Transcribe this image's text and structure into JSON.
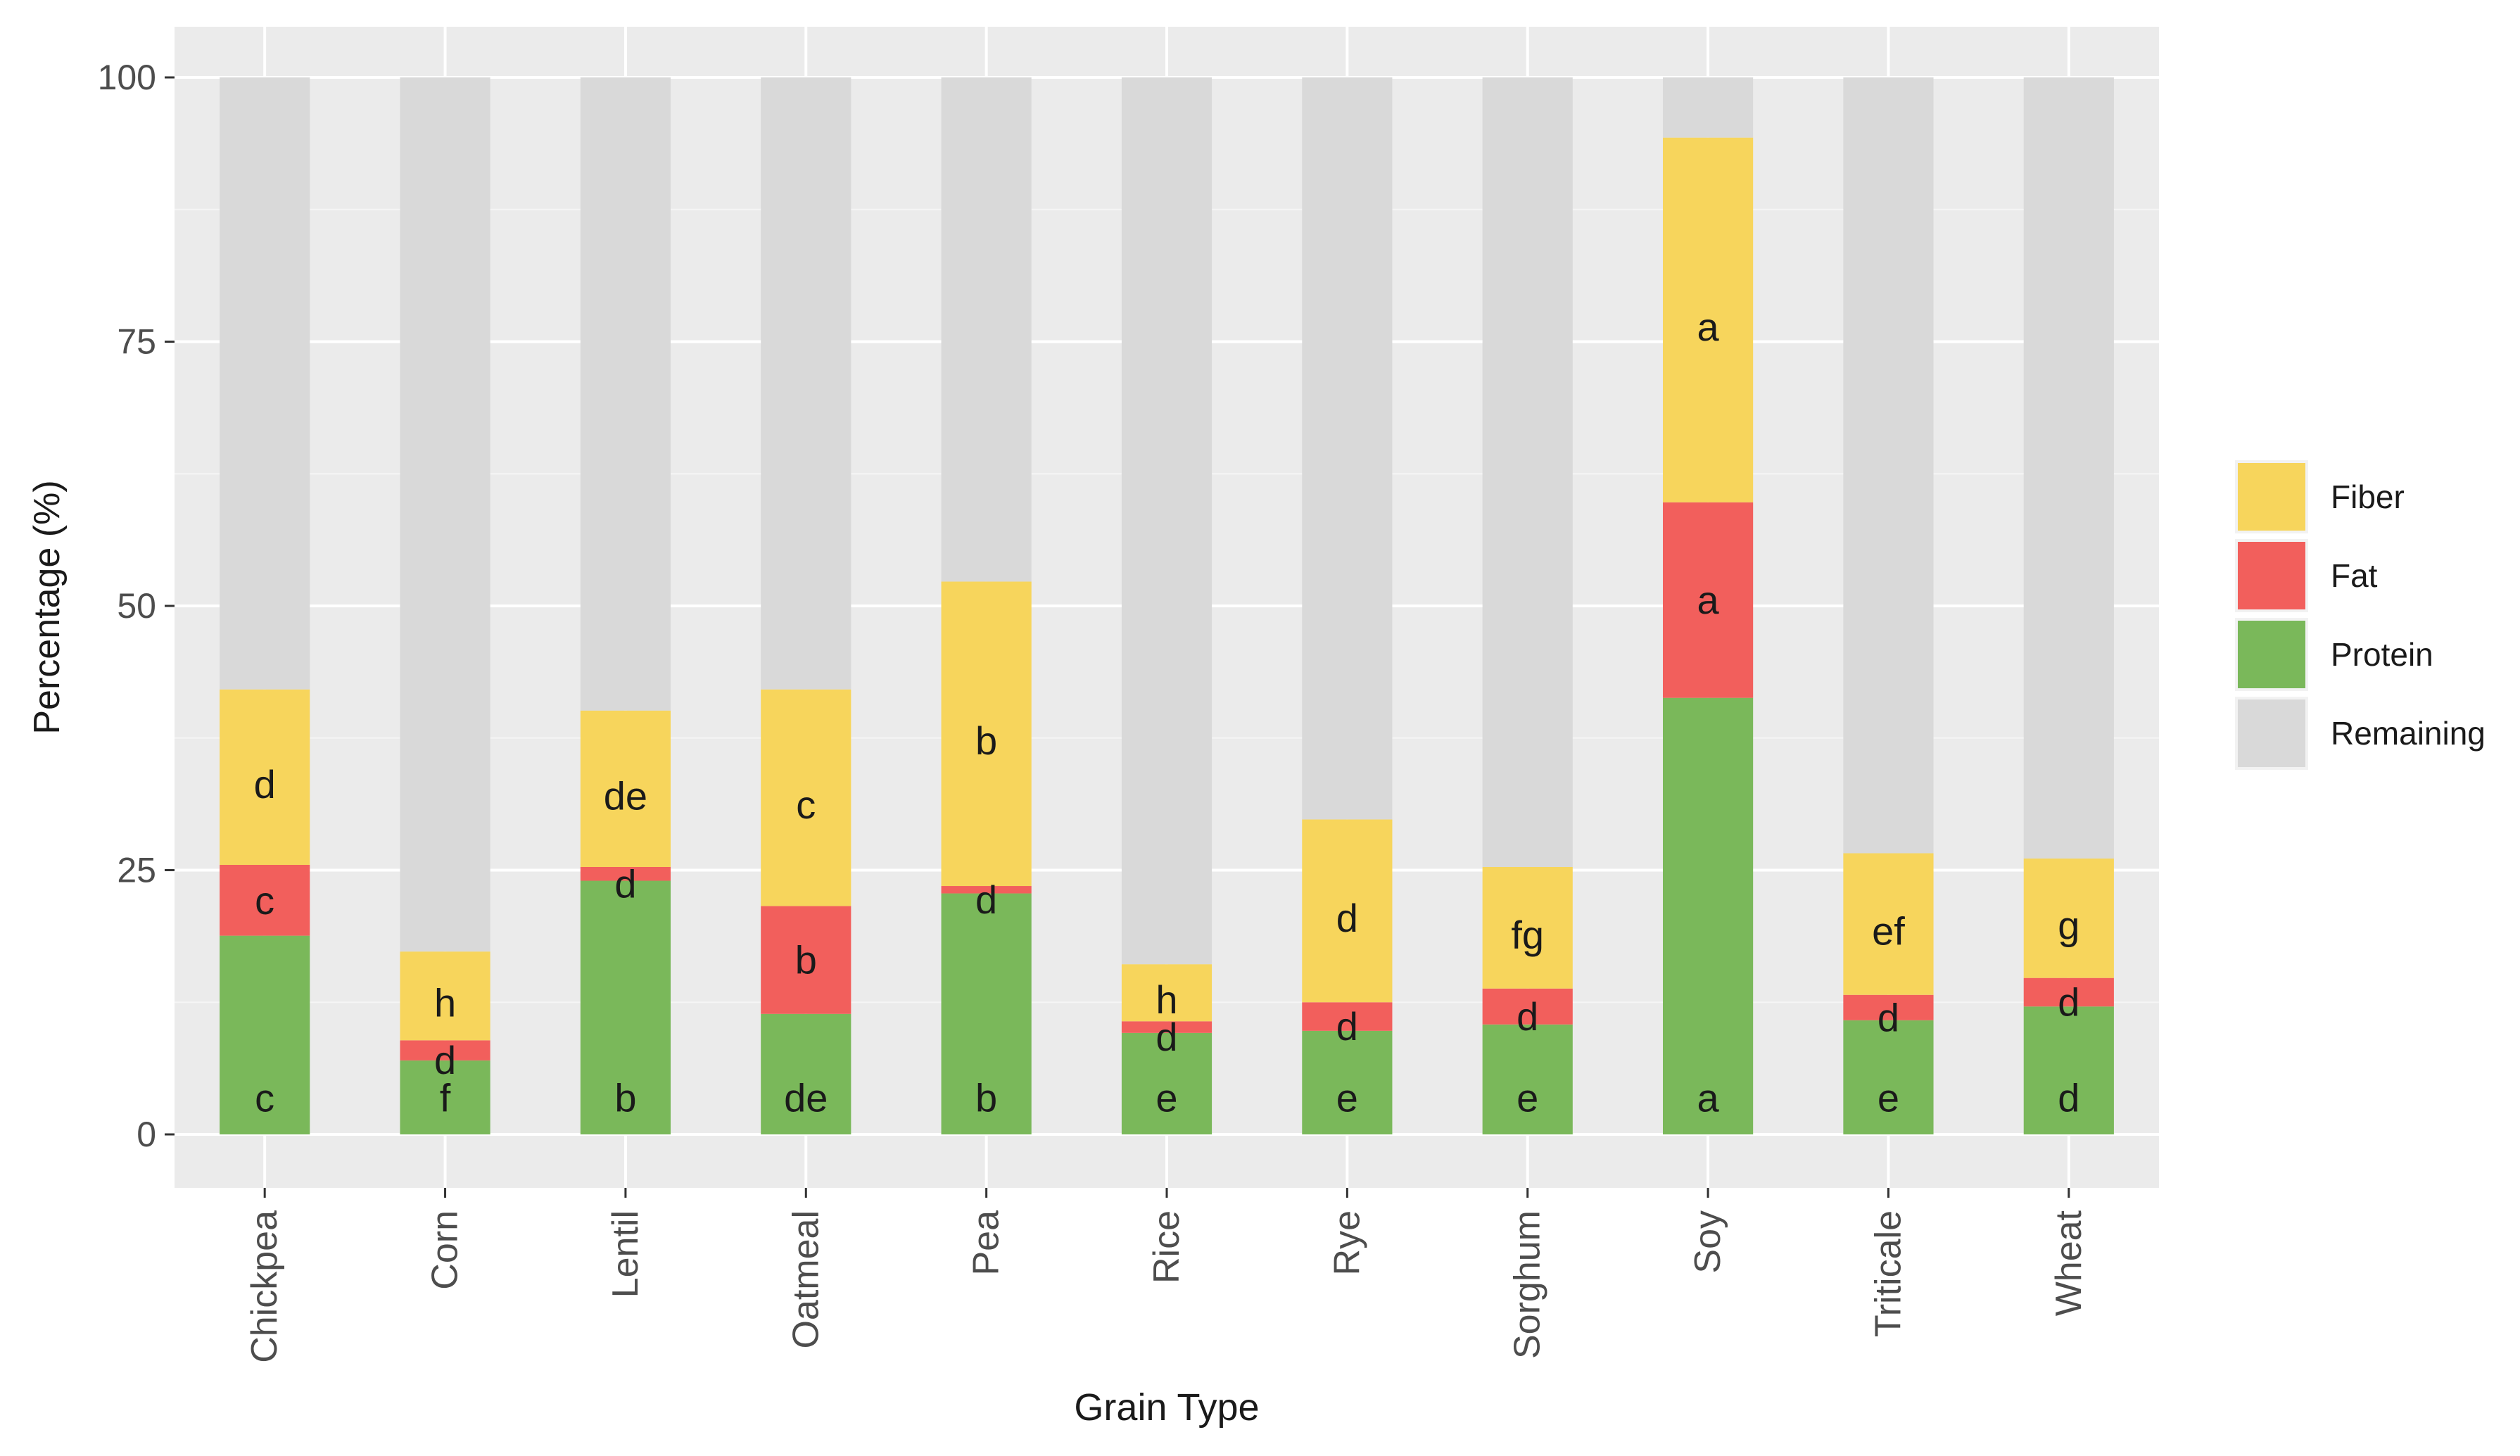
{
  "chart_data": {
    "type": "bar",
    "stacked": true,
    "xlabel": "Grain Type",
    "ylabel": "Percentage (%)",
    "ylim": [
      0,
      100
    ],
    "yticks": [
      "0",
      "25",
      "50",
      "75",
      "100"
    ],
    "categories": [
      "Chickpea",
      "Corn",
      "Lentil",
      "Oatmeal",
      "Pea",
      "Rice",
      "Rye",
      "Sorghum",
      "Soy",
      "Triticale",
      "Wheat"
    ],
    "series": [
      {
        "name": "Protein",
        "color": "#7ab85a",
        "values": [
          18.8,
          7.0,
          24.0,
          11.4,
          22.8,
          9.6,
          9.8,
          10.4,
          41.3,
          10.8,
          12.1
        ],
        "labels": [
          "c",
          "f",
          "b",
          "de",
          "b",
          "e",
          "e",
          "e",
          "a",
          "e",
          "d"
        ]
      },
      {
        "name": "Fat",
        "color": "#f25f5c",
        "values": [
          6.7,
          1.9,
          1.3,
          10.2,
          0.7,
          1.1,
          2.7,
          3.4,
          18.5,
          2.4,
          2.7
        ],
        "labels": [
          "c",
          "d",
          "d",
          "b",
          "d",
          "d",
          "d",
          "d",
          "a",
          "d",
          "d"
        ]
      },
      {
        "name": "Fiber",
        "color": "#f7d55c",
        "values": [
          16.6,
          8.4,
          14.8,
          20.5,
          28.8,
          5.4,
          17.3,
          11.5,
          34.5,
          13.4,
          11.3
        ],
        "labels": [
          "d",
          "h",
          "de",
          "c",
          "b",
          "h",
          "d",
          "fg",
          "a",
          "ef",
          "g"
        ]
      },
      {
        "name": "Remaining",
        "color": "#d9d9d9",
        "values": [
          57.9,
          82.7,
          59.9,
          57.9,
          47.7,
          83.9,
          70.2,
          74.7,
          5.7,
          73.4,
          73.9
        ],
        "labels": []
      }
    ],
    "legend": {
      "position": "right",
      "order": [
        "Fiber",
        "Fat",
        "Protein",
        "Remaining"
      ]
    },
    "grid": true,
    "panel_background": "#ebebeb"
  }
}
